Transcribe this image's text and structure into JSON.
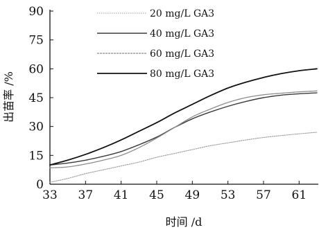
{
  "chart_data": {
    "type": "line",
    "title": "",
    "xlabel": "时间 /d",
    "ylabel": "出苗率 /%",
    "xlim": [
      33,
      63
    ],
    "ylim": [
      0,
      90
    ],
    "xticks": [
      33,
      37,
      41,
      45,
      49,
      53,
      57,
      61
    ],
    "yticks": [
      0,
      15,
      30,
      45,
      60,
      75,
      90
    ],
    "grid": false,
    "legend_position": "top-center",
    "series": [
      {
        "name": "20 mg/L GA3",
        "color": "#9a9a9a",
        "style": "dotted",
        "x": [
          33,
          35,
          37,
          39,
          41,
          43,
          45,
          47,
          49,
          51,
          53,
          55,
          57,
          59,
          61,
          63
        ],
        "y": [
          1,
          3,
          5.5,
          7.5,
          9.5,
          11.5,
          14,
          16,
          18,
          20,
          21.5,
          23,
          24.3,
          25.3,
          26.2,
          27
        ]
      },
      {
        "name": "40 mg/L GA3",
        "color": "#3a3a3a",
        "style": "solid",
        "x": [
          33,
          35,
          37,
          39,
          41,
          43,
          45,
          47,
          49,
          51,
          53,
          55,
          57,
          59,
          61,
          63
        ],
        "y": [
          10,
          11,
          12.5,
          14.5,
          17,
          20.5,
          24.5,
          29.5,
          34,
          37.5,
          40.5,
          43,
          45,
          46.3,
          47,
          47.5
        ]
      },
      {
        "name": "60 mg/L GA3",
        "color": "#8a8a8a",
        "style": "solid",
        "x": [
          33,
          35,
          37,
          39,
          41,
          43,
          45,
          47,
          49,
          51,
          53,
          55,
          57,
          59,
          61,
          63
        ],
        "y": [
          8.5,
          9,
          10.5,
          12.5,
          15,
          19,
          24,
          29.5,
          35,
          39,
          42.5,
          45,
          46.5,
          47.3,
          48,
          48.5
        ]
      },
      {
        "name": "80 mg/L GA3",
        "color": "#111111",
        "style": "solid",
        "x": [
          33,
          35,
          37,
          39,
          41,
          43,
          45,
          47,
          49,
          51,
          53,
          55,
          57,
          59,
          61,
          63
        ],
        "y": [
          10,
          12.5,
          15.5,
          19,
          23,
          27.5,
          32,
          37,
          41.5,
          46,
          50,
          53,
          55.5,
          57.5,
          59,
          60
        ]
      }
    ]
  }
}
